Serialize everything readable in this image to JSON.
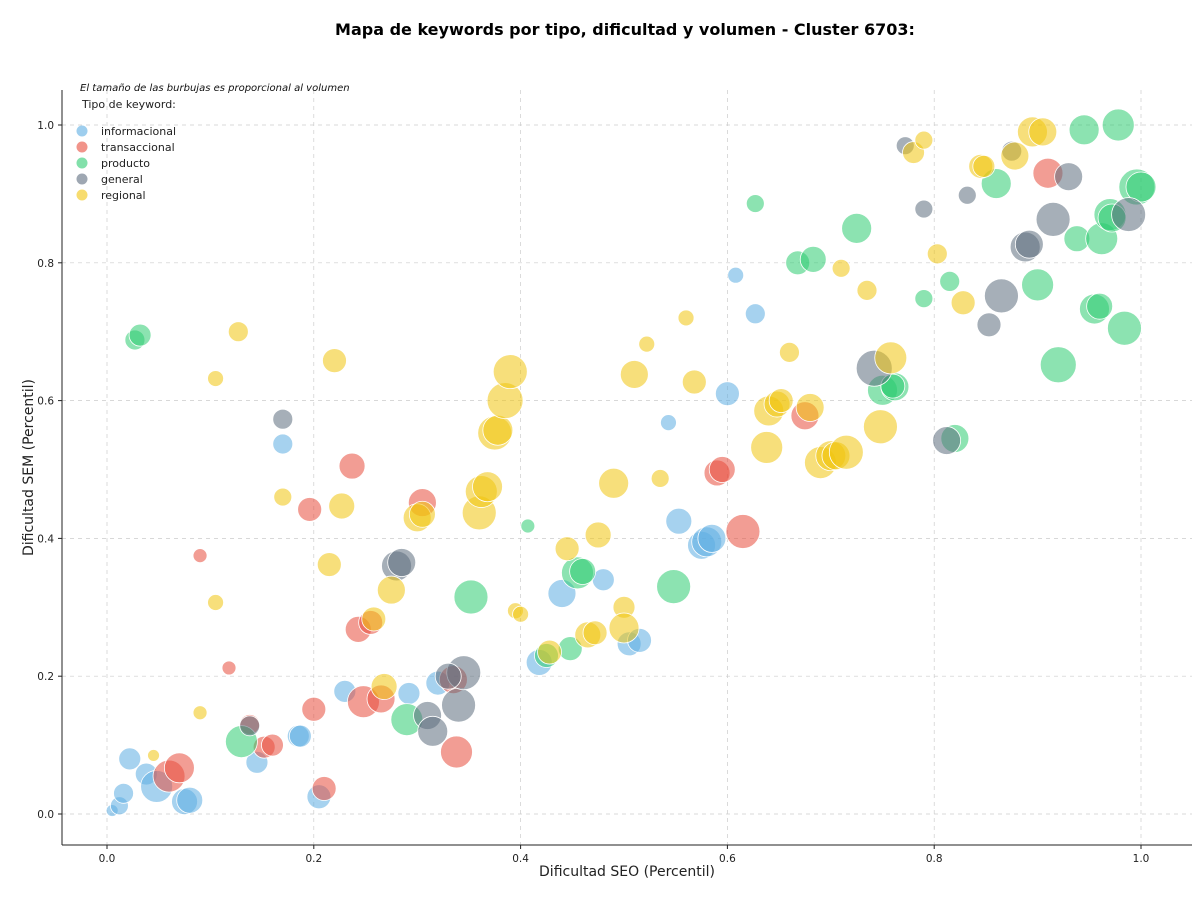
{
  "chart_data": {
    "type": "scatter",
    "title": "Mapa de keywords por tipo, dificultad y volumen - Cluster 6703:",
    "xlabel": "Dificultad SEO (Percentil)",
    "ylabel": "Dificultad SEM (Percentil)",
    "xlim": [
      -0.045,
      1.05
    ],
    "ylim": [
      -0.045,
      1.05
    ],
    "xticks": [
      "0.0",
      "0.2",
      "0.4",
      "0.6",
      "0.8",
      "1.0"
    ],
    "yticks": [
      "0.0",
      "0.2",
      "0.4",
      "0.6",
      "0.8",
      "1.0"
    ],
    "grid": true,
    "note": "El tamaño de las burbujas es proporcional al volumen",
    "legend_title": "Tipo de keyword:",
    "legend_position": "top-left",
    "series": [
      {
        "name": "informacional",
        "color": "#5dade2",
        "points": [
          [
            0.005,
            0.005,
            6
          ],
          [
            0.012,
            0.012,
            9
          ],
          [
            0.016,
            0.03,
            10
          ],
          [
            0.022,
            0.08,
            11
          ],
          [
            0.038,
            0.058,
            11
          ],
          [
            0.048,
            0.04,
            16
          ],
          [
            0.075,
            0.018,
            13
          ],
          [
            0.08,
            0.02,
            13
          ],
          [
            0.145,
            0.075,
            11
          ],
          [
            0.185,
            0.113,
            11
          ],
          [
            0.205,
            0.025,
            12
          ],
          [
            0.23,
            0.178,
            11
          ],
          [
            0.292,
            0.175,
            11
          ],
          [
            0.32,
            0.19,
            12
          ],
          [
            0.17,
            0.537,
            10
          ],
          [
            0.418,
            0.22,
            13
          ],
          [
            0.44,
            0.32,
            14
          ],
          [
            0.505,
            0.247,
            12
          ],
          [
            0.515,
            0.252,
            12
          ],
          [
            0.543,
            0.568,
            8
          ],
          [
            0.553,
            0.425,
            13
          ],
          [
            0.575,
            0.39,
            14
          ],
          [
            0.58,
            0.395,
            15
          ],
          [
            0.585,
            0.4,
            14
          ],
          [
            0.6,
            0.61,
            12
          ],
          [
            0.608,
            0.782,
            8
          ],
          [
            0.627,
            0.726,
            10
          ],
          [
            0.48,
            0.34,
            11
          ],
          [
            0.187,
            0.113,
            11
          ]
        ]
      },
      {
        "name": "transaccional",
        "color": "#e74c3c",
        "points": [
          [
            0.06,
            0.055,
            16
          ],
          [
            0.07,
            0.067,
            15
          ],
          [
            0.09,
            0.375,
            7
          ],
          [
            0.118,
            0.212,
            7
          ],
          [
            0.138,
            0.13,
            10
          ],
          [
            0.152,
            0.097,
            11
          ],
          [
            0.16,
            0.1,
            11
          ],
          [
            0.196,
            0.442,
            12
          ],
          [
            0.2,
            0.152,
            12
          ],
          [
            0.21,
            0.037,
            12
          ],
          [
            0.237,
            0.505,
            13
          ],
          [
            0.243,
            0.268,
            13
          ],
          [
            0.248,
            0.163,
            16
          ],
          [
            0.255,
            0.278,
            12
          ],
          [
            0.265,
            0.167,
            14
          ],
          [
            0.305,
            0.452,
            14
          ],
          [
            0.335,
            0.195,
            14
          ],
          [
            0.338,
            0.09,
            16
          ],
          [
            0.59,
            0.495,
            13
          ],
          [
            0.595,
            0.5,
            13
          ],
          [
            0.615,
            0.41,
            17
          ],
          [
            0.675,
            0.578,
            14
          ],
          [
            0.91,
            0.93,
            15
          ]
        ]
      },
      {
        "name": "producto",
        "color": "#2ecc71",
        "points": [
          [
            0.027,
            0.688,
            10
          ],
          [
            0.032,
            0.695,
            11
          ],
          [
            0.13,
            0.105,
            16
          ],
          [
            0.29,
            0.137,
            16
          ],
          [
            0.352,
            0.315,
            17
          ],
          [
            0.407,
            0.418,
            7
          ],
          [
            0.425,
            0.23,
            12
          ],
          [
            0.448,
            0.24,
            12
          ],
          [
            0.455,
            0.35,
            16
          ],
          [
            0.46,
            0.352,
            13
          ],
          [
            0.548,
            0.33,
            17
          ],
          [
            0.627,
            0.886,
            9
          ],
          [
            0.668,
            0.8,
            12
          ],
          [
            0.683,
            0.805,
            13
          ],
          [
            0.725,
            0.85,
            15
          ],
          [
            0.75,
            0.615,
            15
          ],
          [
            0.762,
            0.62,
            14
          ],
          [
            0.79,
            0.748,
            9
          ],
          [
            0.815,
            0.773,
            10
          ],
          [
            0.82,
            0.545,
            14
          ],
          [
            0.86,
            0.915,
            15
          ],
          [
            0.9,
            0.768,
            16
          ],
          [
            0.92,
            0.652,
            18
          ],
          [
            0.938,
            0.835,
            13
          ],
          [
            0.945,
            0.993,
            15
          ],
          [
            0.955,
            0.733,
            15
          ],
          [
            0.96,
            0.737,
            13
          ],
          [
            0.962,
            0.835,
            16
          ],
          [
            0.97,
            0.87,
            16
          ],
          [
            0.972,
            0.865,
            14
          ],
          [
            0.978,
            1.0,
            16
          ],
          [
            0.984,
            0.705,
            17
          ],
          [
            0.996,
            0.91,
            18
          ],
          [
            1.0,
            0.91,
            15
          ],
          [
            0.76,
            0.621,
            12
          ]
        ]
      },
      {
        "name": "general",
        "color": "#5d6d7e",
        "points": [
          [
            0.138,
            0.128,
            10
          ],
          [
            0.17,
            0.573,
            10
          ],
          [
            0.28,
            0.36,
            15
          ],
          [
            0.285,
            0.365,
            14
          ],
          [
            0.31,
            0.143,
            14
          ],
          [
            0.315,
            0.12,
            15
          ],
          [
            0.34,
            0.158,
            17
          ],
          [
            0.345,
            0.205,
            17
          ],
          [
            0.33,
            0.2,
            13
          ],
          [
            0.742,
            0.647,
            18
          ],
          [
            0.772,
            0.97,
            9
          ],
          [
            0.79,
            0.878,
            9
          ],
          [
            0.812,
            0.542,
            14
          ],
          [
            0.832,
            0.898,
            9
          ],
          [
            0.853,
            0.71,
            12
          ],
          [
            0.865,
            0.752,
            17
          ],
          [
            0.875,
            0.962,
            10
          ],
          [
            0.888,
            0.823,
            15
          ],
          [
            0.892,
            0.827,
            14
          ],
          [
            0.915,
            0.863,
            17
          ],
          [
            0.93,
            0.925,
            14
          ],
          [
            0.988,
            0.87,
            17
          ]
        ]
      },
      {
        "name": "regional",
        "color": "#f1c40f",
        "points": [
          [
            0.045,
            0.085,
            6
          ],
          [
            0.09,
            0.147,
            7
          ],
          [
            0.105,
            0.632,
            8
          ],
          [
            0.105,
            0.307,
            8
          ],
          [
            0.127,
            0.7,
            10
          ],
          [
            0.17,
            0.46,
            9
          ],
          [
            0.215,
            0.362,
            12
          ],
          [
            0.22,
            0.658,
            12
          ],
          [
            0.227,
            0.447,
            13
          ],
          [
            0.258,
            0.283,
            12
          ],
          [
            0.268,
            0.185,
            13
          ],
          [
            0.275,
            0.325,
            14
          ],
          [
            0.3,
            0.43,
            14
          ],
          [
            0.305,
            0.435,
            13
          ],
          [
            0.36,
            0.437,
            17
          ],
          [
            0.362,
            0.468,
            16
          ],
          [
            0.368,
            0.475,
            15
          ],
          [
            0.375,
            0.553,
            17
          ],
          [
            0.378,
            0.557,
            15
          ],
          [
            0.385,
            0.6,
            18
          ],
          [
            0.39,
            0.642,
            17
          ],
          [
            0.395,
            0.295,
            8
          ],
          [
            0.4,
            0.29,
            8
          ],
          [
            0.428,
            0.235,
            12
          ],
          [
            0.445,
            0.385,
            12
          ],
          [
            0.465,
            0.26,
            13
          ],
          [
            0.472,
            0.263,
            12
          ],
          [
            0.475,
            0.405,
            13
          ],
          [
            0.49,
            0.48,
            15
          ],
          [
            0.5,
            0.3,
            11
          ],
          [
            0.5,
            0.27,
            15
          ],
          [
            0.51,
            0.638,
            14
          ],
          [
            0.522,
            0.682,
            8
          ],
          [
            0.535,
            0.487,
            9
          ],
          [
            0.56,
            0.72,
            8
          ],
          [
            0.568,
            0.627,
            12
          ],
          [
            0.638,
            0.532,
            16
          ],
          [
            0.64,
            0.585,
            15
          ],
          [
            0.648,
            0.595,
            13
          ],
          [
            0.652,
            0.6,
            12
          ],
          [
            0.66,
            0.67,
            10
          ],
          [
            0.68,
            0.59,
            14
          ],
          [
            0.69,
            0.51,
            16
          ],
          [
            0.7,
            0.52,
            15
          ],
          [
            0.705,
            0.52,
            14
          ],
          [
            0.71,
            0.792,
            9
          ],
          [
            0.715,
            0.525,
            17
          ],
          [
            0.735,
            0.76,
            10
          ],
          [
            0.748,
            0.562,
            17
          ],
          [
            0.758,
            0.662,
            16
          ],
          [
            0.78,
            0.96,
            11
          ],
          [
            0.79,
            0.978,
            9
          ],
          [
            0.803,
            0.813,
            10
          ],
          [
            0.828,
            0.742,
            12
          ],
          [
            0.845,
            0.94,
            12
          ],
          [
            0.848,
            0.94,
            11
          ],
          [
            0.878,
            0.955,
            14
          ],
          [
            0.895,
            0.99,
            15
          ],
          [
            0.905,
            0.99,
            14
          ]
        ]
      }
    ]
  }
}
